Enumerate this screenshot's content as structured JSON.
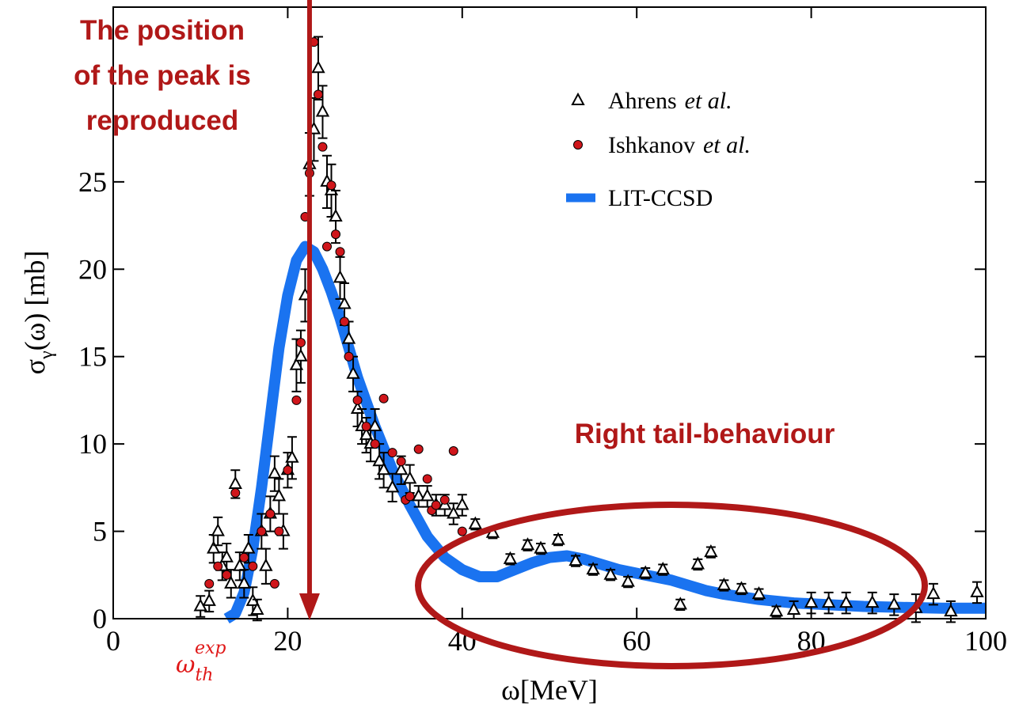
{
  "chart_data": {
    "type": "scatter",
    "x_label": "ω[MeV]",
    "y_label": {
      "main": "σ",
      "sub": "γ",
      "rest": "(ω) [mb]"
    },
    "xlim": [
      0,
      100
    ],
    "ylim": [
      0,
      35
    ],
    "xticks": [
      0,
      20,
      40,
      60,
      80,
      100
    ],
    "yticks": [
      0,
      5,
      10,
      15,
      20,
      25
    ],
    "legend": "top-right",
    "annotations": {
      "peak": [
        "The position",
        "of the peak is",
        "reproduced"
      ],
      "tail": "Right tail-behaviour",
      "threshold": {
        "base": "ω",
        "sub": "th",
        "sup": "exp"
      }
    },
    "series": [
      {
        "name": "Ahrens et al.",
        "name_parts": [
          "Ahrens",
          "et al."
        ],
        "marker": "triangle",
        "color": "#000000",
        "x": [
          10,
          11,
          11.5,
          12,
          12.5,
          13,
          13.5,
          14,
          14.5,
          15,
          15.5,
          16,
          16.5,
          17,
          17.5,
          18,
          18.5,
          19,
          19.5,
          20,
          20.5,
          21,
          21.5,
          22,
          22.5,
          23,
          23.5,
          24,
          24.5,
          25,
          25.5,
          26,
          26.5,
          27,
          27.5,
          28,
          28.5,
          29,
          29.5,
          30,
          30.5,
          31,
          32,
          33,
          34,
          35,
          36,
          37,
          38,
          39,
          40,
          41.5,
          43.5,
          45.5,
          47.5,
          49,
          51,
          53,
          55,
          57,
          59,
          61,
          63,
          65,
          67,
          68.5,
          70,
          72,
          74,
          76,
          78,
          80,
          82,
          84,
          87,
          89.5,
          92,
          94,
          96,
          99
        ],
        "values": [
          0.7,
          1,
          4,
          5,
          3,
          3.5,
          2,
          7.7,
          3,
          2,
          4,
          1,
          0.5,
          5,
          3,
          6,
          8.3,
          7,
          5,
          8.5,
          9.2,
          14.5,
          15,
          18.5,
          26,
          28,
          31.5,
          29,
          25,
          24.5,
          23,
          19.5,
          18,
          16,
          14,
          12,
          11,
          10.5,
          10,
          11,
          9,
          8.5,
          7.5,
          8.5,
          8,
          7,
          7,
          6.5,
          6.5,
          6,
          6.5,
          5.4,
          4.9,
          3.4,
          4.2,
          4,
          4.5,
          3.3,
          2.8,
          2.5,
          2.1,
          2.6,
          2.8,
          0.8,
          3.1,
          3.8,
          1.9,
          1.7,
          1.4,
          0.4,
          0.5,
          0.9,
          0.9,
          0.9,
          0.9,
          0.8,
          0.6,
          1.4,
          0.4,
          1.5
        ],
        "errors": [
          0.6,
          0.6,
          0.8,
          0.8,
          0.8,
          0.8,
          0.8,
          0.8,
          0.8,
          0.8,
          0.8,
          0.8,
          0.6,
          1,
          1,
          1,
          1,
          1,
          1,
          1,
          1.2,
          1.5,
          1.5,
          1.5,
          1.8,
          1.8,
          1.8,
          1.5,
          1.5,
          1.5,
          1.5,
          1.2,
          1.2,
          1,
          1,
          1,
          1,
          1,
          1,
          1,
          1,
          1,
          0.8,
          0.8,
          0.8,
          0.6,
          0.6,
          0.6,
          0.6,
          0.6,
          0.6,
          0.3,
          0.3,
          0.3,
          0.3,
          0.3,
          0.3,
          0.3,
          0.3,
          0.3,
          0.3,
          0.3,
          0.3,
          0.3,
          0.3,
          0.3,
          0.3,
          0.3,
          0.3,
          0.3,
          0.5,
          0.6,
          0.6,
          0.6,
          0.6,
          0.6,
          0.8,
          0.6,
          0.6,
          0.6
        ]
      },
      {
        "name": "Ishkanov et al.",
        "name_parts": [
          "Ishkanov",
          "et al."
        ],
        "marker": "circle",
        "color": "#d0161b",
        "x": [
          11,
          12,
          13,
          14,
          15,
          16,
          17,
          18,
          18.5,
          19,
          20,
          21,
          21.5,
          22,
          22.5,
          23,
          23.5,
          24,
          24.5,
          25,
          25.5,
          26,
          26.5,
          27,
          28,
          29,
          30,
          31,
          32,
          33,
          33.5,
          34,
          35,
          36,
          36.5,
          37,
          38,
          39,
          40
        ],
        "values": [
          2,
          3,
          2.5,
          7.2,
          3.5,
          3,
          5,
          6,
          2,
          5,
          8.5,
          12.5,
          15.8,
          23,
          25.5,
          33,
          30,
          27,
          21.3,
          24.8,
          22,
          21,
          17,
          15,
          12.5,
          11,
          10,
          12.6,
          9.5,
          9,
          6.8,
          7,
          9.7,
          8,
          6.2,
          6.5,
          6.8,
          9.6,
          5
        ]
      },
      {
        "name": "LIT-CCSD",
        "marker": "band",
        "color": "#1a73f0",
        "x": [
          13,
          14,
          15,
          16,
          17,
          18,
          19,
          20,
          21,
          22,
          23,
          24,
          25,
          26,
          27,
          28,
          30,
          32,
          34,
          36,
          38,
          40,
          42,
          44,
          46,
          48,
          50,
          52,
          54,
          56,
          58,
          60,
          62,
          64,
          66,
          68,
          70,
          74,
          78,
          82,
          86,
          90,
          95,
          100
        ],
        "values": [
          0,
          0.3,
          1.5,
          4,
          7.5,
          11.5,
          15.5,
          18.5,
          20.5,
          21.3,
          21,
          20,
          18.7,
          17.2,
          15.5,
          13.8,
          11,
          8.5,
          6.5,
          4.7,
          3.5,
          2.8,
          2.4,
          2.4,
          2.8,
          3.2,
          3.5,
          3.6,
          3.4,
          3.1,
          2.8,
          2.6,
          2.4,
          2.2,
          1.9,
          1.6,
          1.4,
          1.1,
          0.9,
          0.8,
          0.7,
          0.65,
          0.6,
          0.6
        ]
      }
    ]
  }
}
